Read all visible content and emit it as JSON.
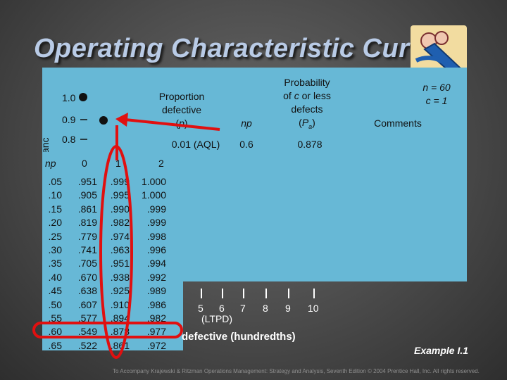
{
  "title": "Operating Characteristic Curve",
  "y_axis": {
    "title": "Probability of acceptance",
    "visible_fragment": "ance",
    "ticks": [
      "1.0",
      "0.9",
      "0.8"
    ]
  },
  "summary_table": {
    "headers": {
      "proportion": "Proportion defective (p)",
      "np": "np",
      "probability": "Probability of c or less defects (Pa)",
      "params": "n = 60\nc = 1",
      "comments": "Comments"
    },
    "row": {
      "proportion": "0.01 (AQL)",
      "np": "0.6",
      "probability": "0.878"
    }
  },
  "poisson_table": {
    "headers": [
      "np",
      "0",
      "1",
      "2"
    ],
    "np": [
      ".05",
      ".10",
      ".15",
      ".20",
      ".25",
      ".30",
      ".35",
      ".40",
      ".45",
      ".50",
      ".55",
      ".60",
      ".65"
    ],
    "col0": [
      ".951",
      ".905",
      ".861",
      ".819",
      ".779",
      ".741",
      ".705",
      ".670",
      ".638",
      ".607",
      ".577",
      ".549",
      ".522"
    ],
    "col1": [
      ".999",
      ".995",
      ".990",
      ".982",
      ".974",
      ".963",
      ".951",
      ".938",
      ".925",
      ".910",
      ".894",
      ".878",
      ".861"
    ],
    "col2": [
      "1.000",
      "1.000",
      ".999",
      ".999",
      ".998",
      ".996",
      ".994",
      ".992",
      ".989",
      ".986",
      ".982",
      ".977",
      ".972"
    ]
  },
  "x_axis": {
    "ticks": [
      "5",
      "6",
      "7",
      "8",
      "9",
      "10"
    ],
    "ltpd_label": "(LTPD)",
    "label": "Proportion defective (hundredths)",
    "visible_label": "defective (hundredths)"
  },
  "example_label": "Example I.1",
  "footer": "To Accompany Krajewski & Ritzman Operations Management: Strategy and Analysis, Seventh Edition © 2004 Prentice Hall, Inc. All rights reserved.",
  "colors": {
    "highlight": "#e01010",
    "panel": "#67b8d6",
    "title": "#b9cbe6"
  }
}
